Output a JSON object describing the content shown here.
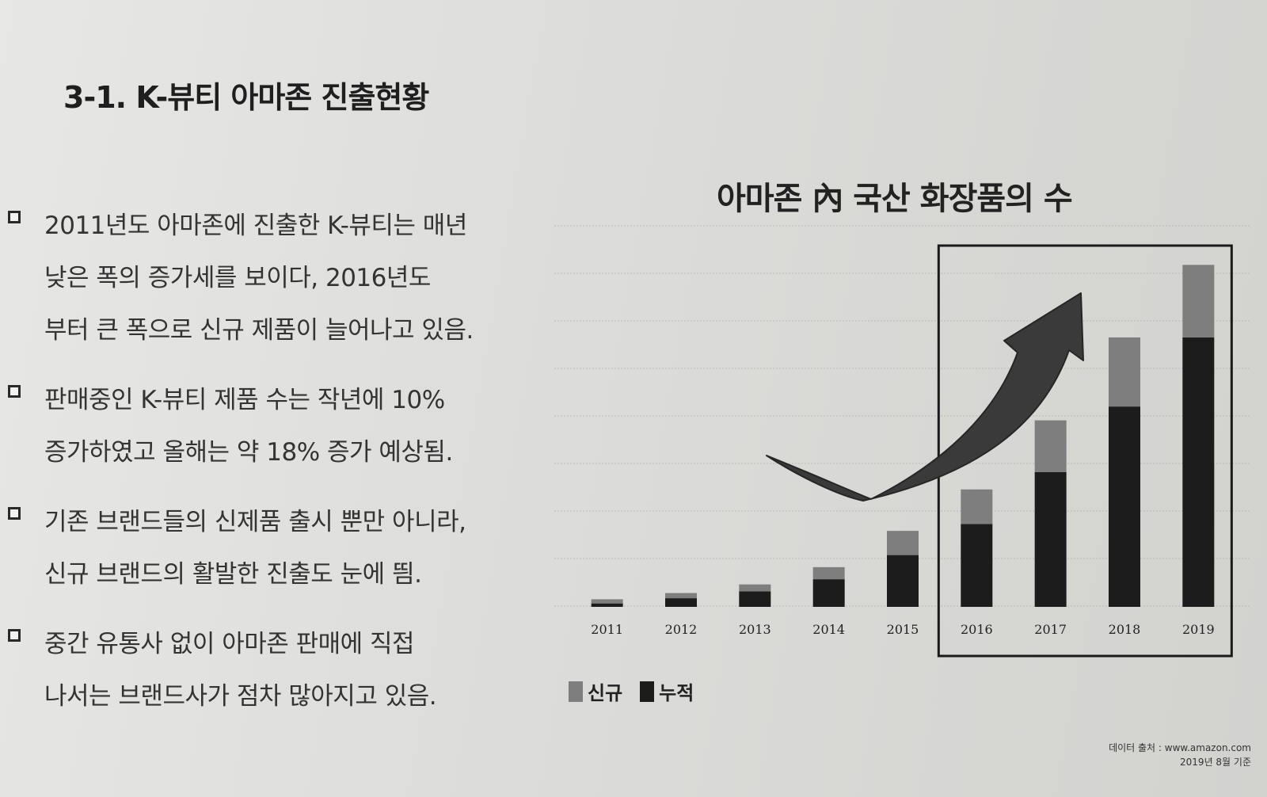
{
  "section": {
    "title": "3-1. K-뷰티 아마존 진출현황"
  },
  "bullets": [
    {
      "lines": [
        "2011년도 아마존에 진출한 K-뷰티는 매년",
        "낮은 폭의 증가세를 보이다, 2016년도",
        "부터 큰 폭으로 신규 제품이 늘어나고 있음."
      ]
    },
    {
      "lines": [
        "판매중인 K-뷰티 제품 수는 작년에 10%",
        "증가하였고 올해는 약 18% 증가 예상됨."
      ]
    },
    {
      "lines": [
        "기존 브랜드들의 신제품 출시 뿐만 아니라,",
        "신규 브랜드의 활발한 진출도 눈에 띔."
      ]
    },
    {
      "lines": [
        "중간 유통사 없이 아마존 판매에 직접",
        "나서는 브랜드사가 점차 많아지고 있음."
      ]
    }
  ],
  "chart_data": {
    "type": "bar",
    "title": "아마존 內 국산 화장품의 수",
    "categories": [
      "2011",
      "2012",
      "2013",
      "2014",
      "2015",
      "2016",
      "2017",
      "2018",
      "2019"
    ],
    "series": [
      {
        "name": "누적",
        "values": [
          1,
          2.5,
          4.5,
          8,
          15,
          24,
          39,
          58,
          78
        ],
        "color": "#1c1c1c"
      },
      {
        "name": "신규",
        "values": [
          1.2,
          1.5,
          2,
          3.5,
          7,
          10,
          15,
          20,
          21
        ],
        "color": "#7e7e7e"
      }
    ],
    "stacked": true,
    "grid": true,
    "legend": "bottom-left",
    "highlight": {
      "from": "2016",
      "to": "2019"
    },
    "trend_arrow": true
  },
  "legend": {
    "items": [
      {
        "label": "신규",
        "color": "#7e7e7e"
      },
      {
        "label": "누적",
        "color": "#1c1c1c"
      }
    ]
  },
  "source": {
    "line1": "데이터 출처 : www.amazon.com",
    "line2": "2019년 8월 기준"
  }
}
